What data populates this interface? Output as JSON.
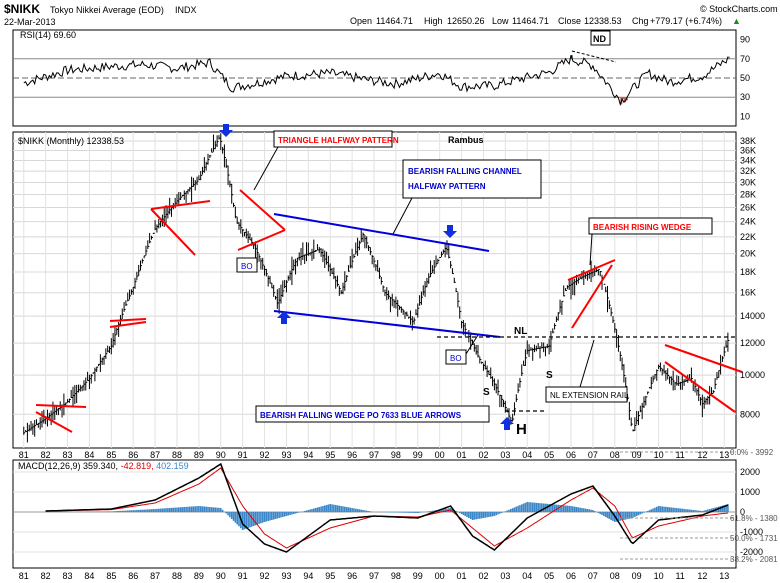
{
  "header": {
    "symbol": "$NIKK",
    "name": "Tokyo Nikkei Average (EOD)",
    "exchange": "INDX",
    "date": "22-Mar-2013",
    "open_label": "Open",
    "open": "11464.71",
    "high_label": "High",
    "high": "12650.26",
    "low_label": "Low",
    "low": "11464.71",
    "close_label": "Close",
    "close": "12338.53",
    "chg_label": "Chg",
    "chg": "+779.17 (+6.74%)",
    "chg_marker": "▲",
    "credit": "© StockCharts.com"
  },
  "colors": {
    "up": "#1a8a1a",
    "trendline_red": "#ff0000",
    "trendline_blue": "#0000dd",
    "annotation_blue": "#0000cc",
    "arrow_blue": "#1030e0",
    "macd_line": "#000000",
    "signal_line": "#dd0000",
    "histogram": "#3a86c8",
    "rsi_fill_high": "#5a8a5a",
    "rsi_fill_low": "#c06060"
  },
  "rsi_panel": {
    "label": "RSI(14) 69.60",
    "ticks": [
      "90",
      "70",
      "50",
      "30",
      "10"
    ],
    "note": "ND"
  },
  "price_panel": {
    "label": "$NIKK (Monthly) 12338.53",
    "watermark": "Rambus",
    "y_ticks": [
      "38K",
      "36K",
      "34K",
      "32K",
      "30K",
      "28K",
      "26K",
      "24K",
      "22K",
      "20K",
      "18K",
      "16K",
      "14000",
      "12000",
      "10000",
      "8000"
    ],
    "x_ticks": [
      "81",
      "82",
      "83",
      "84",
      "85",
      "86",
      "87",
      "88",
      "89",
      "90",
      "91",
      "92",
      "93",
      "94",
      "95",
      "96",
      "97",
      "98",
      "99",
      "00",
      "01",
      "02",
      "03",
      "04",
      "05",
      "06",
      "07",
      "08",
      "09",
      "10",
      "11",
      "12",
      "13"
    ]
  },
  "annotations": {
    "triangle": "TRIANGLE HALFWAY PATTERN",
    "channel_line1": "BEARISH FALLING CHANNEL",
    "channel_line2": "HALFWAY PATTERN",
    "rising_wedge": "BEARISH RISING WEDGE",
    "falling_wedge": "BEARISH FALLING WEDGE PO 7633 BLUE ARROWS",
    "nl_rail": "NL EXTENSION RAIL",
    "bo1": "BO",
    "bo2": "BO",
    "nl": "NL",
    "s_left": "S",
    "s_right": "S",
    "head": "H"
  },
  "macd_panel": {
    "label": "MACD(12,26,9) 359.340, -42.819, 402.159",
    "label_main": "MACD(12,26,9) 359.340,",
    "label_signal": "-42.819,",
    "label_hist": "402.159",
    "ticks": [
      "2000",
      "1000",
      "0",
      "-1000",
      "-2000"
    ],
    "fib_labels": [
      "0.0% - 3992",
      "61.8% - 1380",
      "50.0% - 1731",
      "38.2% - 2081"
    ]
  },
  "chart_data": [
    {
      "type": "line",
      "title": "RSI(14) 69.60",
      "ylim": [
        0,
        100
      ],
      "y_ticks": [
        10,
        30,
        50,
        70,
        90
      ],
      "x": [
        1981,
        1983,
        1985,
        1986.5,
        1988,
        1989.5,
        1990.5,
        1991.5,
        1993,
        1995,
        1997,
        1998,
        2000,
        2001,
        2002.5,
        2003.5,
        2005,
        2006,
        2007,
        2008.3,
        2009.5,
        2010.5,
        2012,
        2013.2
      ],
      "values": [
        45,
        58,
        62,
        64,
        60,
        66,
        40,
        44,
        52,
        55,
        47,
        44,
        55,
        41,
        42,
        48,
        56,
        70,
        63,
        26,
        55,
        46,
        52,
        70
      ]
    },
    {
      "type": "line",
      "title": "$NIKK (Monthly) 12338.53",
      "xlabel": "",
      "ylabel": "",
      "scale": "log",
      "ylim": [
        6600,
        40000
      ],
      "grid": true,
      "x": [
        1981,
        1982,
        1983,
        1984,
        1985,
        1986,
        1987,
        1988,
        1989,
        1989.95,
        1990.7,
        1991.5,
        1992.6,
        1993.5,
        1994.5,
        1995.5,
        1996.5,
        1997.5,
        1998.8,
        1999.5,
        2000.3,
        2001,
        2001.8,
        2002.5,
        2003.3,
        2004,
        2005,
        2005.8,
        2006.5,
        2007.3,
        2008,
        2008.8,
        2009.3,
        2010,
        2010.8,
        2011.5,
        2012,
        2012.5,
        2013.2
      ],
      "values": [
        7200,
        7800,
        8600,
        9800,
        11800,
        16500,
        23000,
        27000,
        30500,
        38900,
        24000,
        21000,
        15000,
        19500,
        20500,
        16000,
        22300,
        16000,
        13500,
        17500,
        20800,
        13500,
        11000,
        9500,
        7600,
        11500,
        11800,
        16500,
        17500,
        18300,
        13000,
        7200,
        8500,
        10500,
        9500,
        9800,
        8500,
        9100,
        12338
      ]
    },
    {
      "type": "line",
      "title": "MACD(12,26,9) 359.340, -42.819, 402.159",
      "ylim": [
        -2800,
        2600
      ],
      "y_ticks": [
        -2000,
        -1000,
        0,
        1000,
        2000
      ],
      "series": [
        {
          "name": "MACD(12,26,9)",
          "x": [
            1982,
            1985,
            1987,
            1989,
            1990,
            1991,
            1992,
            1993,
            1995,
            1997,
            1999,
            2000.5,
            2001.5,
            2002.5,
            2004,
            2006,
            2007,
            2008,
            2008.8,
            2010,
            2012,
            2013.2
          ],
          "values": [
            50,
            150,
            600,
            1700,
            2400,
            -600,
            -1600,
            -2000,
            -400,
            -200,
            -300,
            300,
            -1200,
            -1900,
            -300,
            900,
            1300,
            -200,
            -1600,
            -400,
            -150,
            359
          ]
        },
        {
          "name": "Signal",
          "x": [
            1982,
            1985,
            1987,
            1989,
            1990,
            1991,
            1992,
            1993,
            1995,
            1997,
            1999,
            2000.5,
            2001.5,
            2002.5,
            2004,
            2006,
            2007,
            2008,
            2008.8,
            2010,
            2012,
            2013.2
          ],
          "values": [
            40,
            120,
            450,
            1400,
            2200,
            300,
            -1100,
            -1800,
            -800,
            -200,
            -250,
            100,
            -800,
            -1700,
            -800,
            600,
            1200,
            300,
            -1300,
            -700,
            -200,
            -43
          ]
        }
      ],
      "histogram": {
        "x": [
          1986,
          1988,
          1990.3,
          1991.5,
          1993.5,
          2001.5,
          2003,
          2006,
          2008.5,
          2012.5,
          2013.2
        ],
        "values": [
          150,
          300,
          300,
          -1400,
          -400,
          -500,
          -400,
          300,
          -400,
          100,
          402
        ]
      }
    }
  ]
}
